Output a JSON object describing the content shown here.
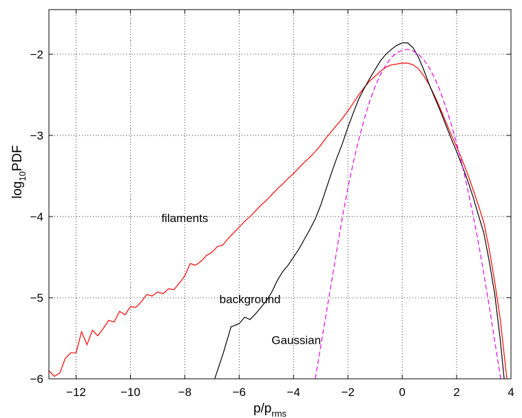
{
  "chart_data": {
    "type": "line",
    "title": "",
    "xlabel": "p/p",
    "xlabel_sub": "rms",
    "ylabel": "log",
    "ylabel_sub": "10",
    "ylabel_rest": "PDF",
    "xlim": [
      -13,
      4
    ],
    "ylim": [
      -6,
      -1.45
    ],
    "x_ticks": [
      -12,
      -10,
      -8,
      -6,
      -4,
      -2,
      0,
      2,
      4
    ],
    "x_tick_labels": [
      "−12",
      "−10",
      "−8",
      "−6",
      "−4",
      "−2",
      "0",
      "2",
      "4"
    ],
    "y_ticks": [
      -6,
      -5,
      -4,
      -3,
      -2
    ],
    "y_tick_labels": [
      "−6",
      "−5",
      "−4",
      "−3",
      "−2"
    ],
    "grid": true,
    "grid_style": "dotted",
    "legend": "none",
    "series": [
      {
        "color": "#ff0000",
        "dash": "solid",
        "points": [
          [
            -13.0,
            -5.9
          ],
          [
            -12.8,
            -5.97
          ],
          [
            -12.6,
            -5.93
          ],
          [
            -12.4,
            -5.75
          ],
          [
            -12.2,
            -5.68
          ],
          [
            -12.0,
            -5.68
          ],
          [
            -11.8,
            -5.42
          ],
          [
            -11.6,
            -5.58
          ],
          [
            -11.4,
            -5.4
          ],
          [
            -11.2,
            -5.47
          ],
          [
            -11.0,
            -5.38
          ],
          [
            -10.8,
            -5.28
          ],
          [
            -10.6,
            -5.3
          ],
          [
            -10.4,
            -5.17
          ],
          [
            -10.2,
            -5.21
          ],
          [
            -10.0,
            -5.11
          ],
          [
            -9.8,
            -5.12
          ],
          [
            -9.6,
            -5.05
          ],
          [
            -9.4,
            -4.96
          ],
          [
            -9.2,
            -4.98
          ],
          [
            -9.0,
            -4.93
          ],
          [
            -8.8,
            -4.95
          ],
          [
            -8.6,
            -4.89
          ],
          [
            -8.4,
            -4.9
          ],
          [
            -8.2,
            -4.82
          ],
          [
            -8.0,
            -4.73
          ],
          [
            -7.8,
            -4.58
          ],
          [
            -7.6,
            -4.6
          ],
          [
            -7.4,
            -4.55
          ],
          [
            -7.2,
            -4.48
          ],
          [
            -7.0,
            -4.44
          ],
          [
            -6.8,
            -4.37
          ],
          [
            -6.6,
            -4.35
          ],
          [
            -6.4,
            -4.27
          ],
          [
            -6.2,
            -4.2
          ],
          [
            -6.0,
            -4.13
          ],
          [
            -5.8,
            -4.06
          ],
          [
            -5.6,
            -4.0
          ],
          [
            -5.4,
            -3.93
          ],
          [
            -5.2,
            -3.86
          ],
          [
            -5.0,
            -3.8
          ],
          [
            -4.8,
            -3.73
          ],
          [
            -4.6,
            -3.66
          ],
          [
            -4.4,
            -3.6
          ],
          [
            -4.2,
            -3.53
          ],
          [
            -4.0,
            -3.47
          ],
          [
            -3.8,
            -3.4
          ],
          [
            -3.6,
            -3.33
          ],
          [
            -3.4,
            -3.27
          ],
          [
            -3.2,
            -3.2
          ],
          [
            -3.0,
            -3.12
          ],
          [
            -2.8,
            -3.03
          ],
          [
            -2.6,
            -2.95
          ],
          [
            -2.4,
            -2.87
          ],
          [
            -2.2,
            -2.79
          ],
          [
            -2.0,
            -2.7
          ],
          [
            -1.8,
            -2.6
          ],
          [
            -1.6,
            -2.5
          ],
          [
            -1.4,
            -2.41
          ],
          [
            -1.2,
            -2.33
          ],
          [
            -1.0,
            -2.27
          ],
          [
            -0.8,
            -2.21
          ],
          [
            -0.6,
            -2.16
          ],
          [
            -0.4,
            -2.13
          ],
          [
            -0.2,
            -2.12
          ],
          [
            0.0,
            -2.11
          ],
          [
            0.2,
            -2.11
          ],
          [
            0.4,
            -2.13
          ],
          [
            0.6,
            -2.18
          ],
          [
            0.8,
            -2.27
          ],
          [
            1.0,
            -2.38
          ],
          [
            1.2,
            -2.52
          ],
          [
            1.4,
            -2.67
          ],
          [
            1.6,
            -2.83
          ],
          [
            1.8,
            -2.99
          ],
          [
            2.0,
            -3.14
          ],
          [
            2.2,
            -3.3
          ],
          [
            2.4,
            -3.47
          ],
          [
            2.6,
            -3.66
          ],
          [
            2.8,
            -3.86
          ],
          [
            3.0,
            -4.07
          ],
          [
            3.2,
            -4.4
          ],
          [
            3.4,
            -4.8
          ],
          [
            3.6,
            -5.25
          ],
          [
            3.8,
            -5.85
          ],
          [
            3.85,
            -6.0
          ]
        ]
      },
      {
        "color": "#000000",
        "dash": "solid",
        "points": [
          [
            -6.9,
            -6.0
          ],
          [
            -6.6,
            -5.7
          ],
          [
            -6.3,
            -5.36
          ],
          [
            -6.0,
            -5.32
          ],
          [
            -5.8,
            -5.24
          ],
          [
            -5.6,
            -5.27
          ],
          [
            -5.4,
            -5.2
          ],
          [
            -5.2,
            -5.12
          ],
          [
            -5.0,
            -5.04
          ],
          [
            -4.8,
            -4.93
          ],
          [
            -4.6,
            -4.79
          ],
          [
            -4.4,
            -4.68
          ],
          [
            -4.2,
            -4.6
          ],
          [
            -4.0,
            -4.5
          ],
          [
            -3.8,
            -4.4
          ],
          [
            -3.6,
            -4.28
          ],
          [
            -3.4,
            -4.16
          ],
          [
            -3.2,
            -4.03
          ],
          [
            -3.0,
            -3.86
          ],
          [
            -2.8,
            -3.66
          ],
          [
            -2.6,
            -3.46
          ],
          [
            -2.4,
            -3.27
          ],
          [
            -2.2,
            -3.1
          ],
          [
            -2.0,
            -2.9
          ],
          [
            -1.8,
            -2.72
          ],
          [
            -1.6,
            -2.55
          ],
          [
            -1.4,
            -2.42
          ],
          [
            -1.2,
            -2.3
          ],
          [
            -1.0,
            -2.19
          ],
          [
            -0.8,
            -2.08
          ],
          [
            -0.6,
            -2.0
          ],
          [
            -0.4,
            -1.94
          ],
          [
            -0.2,
            -1.89
          ],
          [
            0.0,
            -1.86
          ],
          [
            0.2,
            -1.86
          ],
          [
            0.4,
            -1.92
          ],
          [
            0.6,
            -2.04
          ],
          [
            0.8,
            -2.2
          ],
          [
            1.0,
            -2.38
          ],
          [
            1.2,
            -2.54
          ],
          [
            1.4,
            -2.7
          ],
          [
            1.6,
            -2.87
          ],
          [
            1.8,
            -3.04
          ],
          [
            2.0,
            -3.2
          ],
          [
            2.2,
            -3.37
          ],
          [
            2.4,
            -3.55
          ],
          [
            2.6,
            -3.75
          ],
          [
            2.8,
            -3.98
          ],
          [
            3.0,
            -4.2
          ],
          [
            3.2,
            -4.55
          ],
          [
            3.4,
            -4.95
          ],
          [
            3.6,
            -5.5
          ],
          [
            3.75,
            -6.0
          ]
        ]
      },
      {
        "color": "#e600e6",
        "dash": "dashed",
        "points": [
          [
            -3.2,
            -6.0
          ],
          [
            -3.0,
            -5.6
          ],
          [
            -2.8,
            -5.2
          ],
          [
            -2.6,
            -4.8
          ],
          [
            -2.4,
            -4.4
          ],
          [
            -2.2,
            -4.0
          ],
          [
            -2.0,
            -3.65
          ],
          [
            -1.8,
            -3.33
          ],
          [
            -1.6,
            -3.05
          ],
          [
            -1.4,
            -2.8
          ],
          [
            -1.2,
            -2.58
          ],
          [
            -1.0,
            -2.4
          ],
          [
            -0.8,
            -2.25
          ],
          [
            -0.6,
            -2.13
          ],
          [
            -0.4,
            -2.04
          ],
          [
            -0.2,
            -1.98
          ],
          [
            0.0,
            -1.95
          ],
          [
            0.2,
            -1.94
          ],
          [
            0.4,
            -1.96
          ],
          [
            0.6,
            -2.0
          ],
          [
            0.8,
            -2.07
          ],
          [
            1.0,
            -2.17
          ],
          [
            1.2,
            -2.3
          ],
          [
            1.4,
            -2.46
          ],
          [
            1.6,
            -2.65
          ],
          [
            1.8,
            -2.86
          ],
          [
            2.0,
            -3.1
          ],
          [
            2.2,
            -3.36
          ],
          [
            2.4,
            -3.65
          ],
          [
            2.6,
            -3.97
          ],
          [
            2.8,
            -4.32
          ],
          [
            3.0,
            -4.7
          ],
          [
            3.2,
            -5.1
          ],
          [
            3.4,
            -5.53
          ],
          [
            3.6,
            -5.95
          ],
          [
            3.62,
            -6.0
          ]
        ]
      }
    ],
    "annotations": [
      {
        "text": "filaments",
        "x": -8.0,
        "y": -4.07
      },
      {
        "text": "background",
        "x": -5.6,
        "y": -5.07
      },
      {
        "text": "Gaussian",
        "x": -3.9,
        "y": -5.57
      }
    ]
  }
}
